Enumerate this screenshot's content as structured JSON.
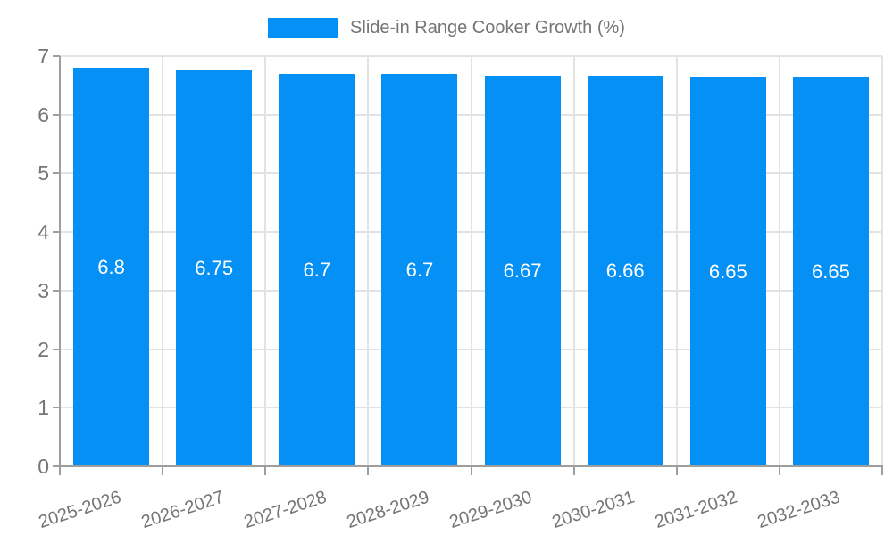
{
  "legend": {
    "swatch_color": "#0590f5",
    "label": "Slide-in Range Cooker Growth (%)"
  },
  "chart_data": {
    "type": "bar",
    "title": "Slide-in Range Cooker Growth (%)",
    "categories": [
      "2025-2026",
      "2026-2027",
      "2027-2028",
      "2028-2029",
      "2029-2030",
      "2030-2031",
      "2031-2032",
      "2032-2033"
    ],
    "values": [
      6.8,
      6.75,
      6.7,
      6.7,
      6.67,
      6.66,
      6.65,
      6.65
    ],
    "bar_labels": [
      "6.8",
      "6.75",
      "6.7",
      "6.7",
      "6.67",
      "6.66",
      "6.65",
      "6.65"
    ],
    "xlabel": "",
    "ylabel": "",
    "ylim": [
      0,
      7
    ],
    "yticks": [
      0,
      1,
      2,
      3,
      4,
      5,
      6,
      7
    ],
    "grid": true,
    "legend_position": "top-center",
    "x_tick_rotation_deg": -18,
    "colors": {
      "bar": "#0590f5",
      "axis": "#9e9e9e",
      "grid": "#e3e3e3",
      "tick_label": "#757575",
      "bar_label": "#ffffff"
    }
  }
}
